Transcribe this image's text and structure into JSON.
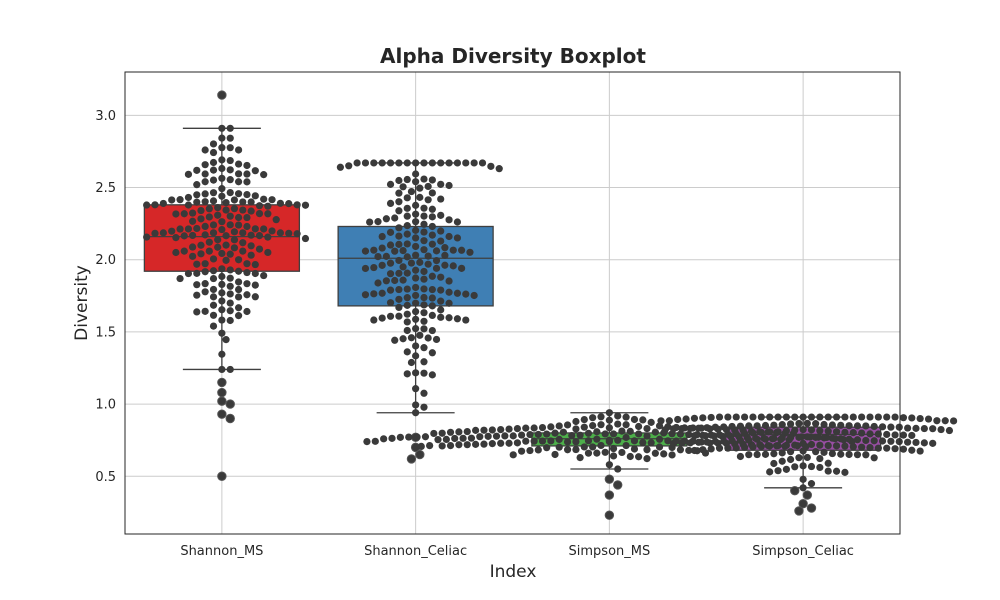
{
  "chart_data": {
    "type": "boxplot",
    "title": "Alpha Diversity Boxplot",
    "xlabel": "Index",
    "ylabel": "Diversity",
    "categories": [
      "Shannon_MS",
      "Shannon_Celiac",
      "Simpson_MS",
      "Simpson_Celiac"
    ],
    "ylim": [
      0.1,
      3.3
    ],
    "yticks": [
      0.5,
      1.0,
      1.5,
      2.0,
      2.5,
      3.0
    ],
    "ytick_labels": [
      "0.5",
      "1.0",
      "1.5",
      "2.0",
      "2.5",
      "3.0"
    ],
    "grid": true,
    "box_colors": [
      "#d62728",
      "#3f7fb4",
      "#4daf4a",
      "#984ea3"
    ],
    "point_color": "#333333",
    "boxes": [
      {
        "name": "Shannon_MS",
        "whisker_low": 1.24,
        "q1": 1.92,
        "median": 2.16,
        "q3": 2.38,
        "whisker_high": 2.91,
        "outliers": [
          0.5,
          0.9,
          0.93,
          1.0,
          1.02,
          1.08,
          1.15,
          3.14
        ]
      },
      {
        "name": "Shannon_Celiac",
        "whisker_low": 0.94,
        "q1": 1.68,
        "median": 2.01,
        "q3": 2.23,
        "whisker_high": 2.67,
        "outliers": [
          0.62,
          0.65,
          0.7,
          0.77
        ]
      },
      {
        "name": "Simpson_MS",
        "whisker_low": 0.55,
        "q1": 0.71,
        "median": 0.76,
        "q3": 0.8,
        "whisker_high": 0.94,
        "outliers": [
          0.23,
          0.37,
          0.44,
          0.48
        ]
      },
      {
        "name": "Simpson_Celiac",
        "whisker_low": 0.42,
        "q1": 0.68,
        "median": 0.79,
        "q3": 0.84,
        "whisker_high": 0.91,
        "outliers": [
          0.26,
          0.28,
          0.31,
          0.37,
          0.4
        ]
      }
    ]
  }
}
